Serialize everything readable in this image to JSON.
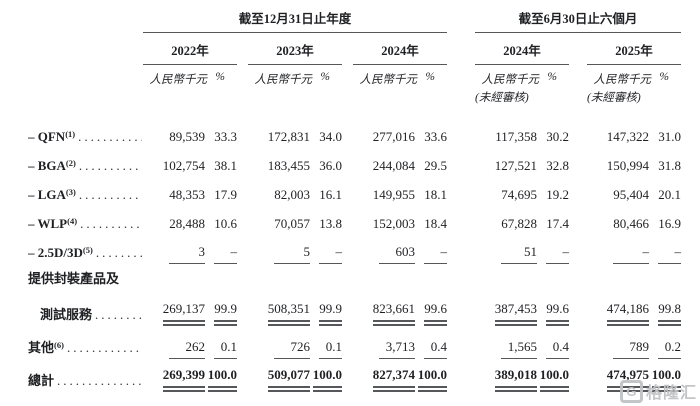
{
  "header": {
    "group_titles": [
      {
        "text": "截至12月31日止年度"
      },
      {
        "text": "截至6月30日止六個月"
      }
    ],
    "columns": [
      {
        "year": "2022年",
        "unit": "人民幣千元",
        "pct": "%",
        "note": ""
      },
      {
        "year": "2023年",
        "unit": "人民幣千元",
        "pct": "%",
        "note": ""
      },
      {
        "year": "2024年",
        "unit": "人民幣千元",
        "pct": "%",
        "note": ""
      },
      {
        "year": "2024年",
        "unit": "人民幣千元",
        "pct": "%",
        "note": "(未經審核)"
      },
      {
        "year": "2025年",
        "unit": "人民幣千元",
        "pct": "%",
        "note": "(未經審核)"
      }
    ]
  },
  "leader_dots": "......................................",
  "rows": [
    {
      "kind": "item",
      "label": "– QFN",
      "sup": "(1)",
      "leader": true,
      "rule": "none",
      "values": [
        "89,539",
        "33.3",
        "172,831",
        "34.0",
        "277,016",
        "33.6",
        "117,358",
        "30.2",
        "147,322",
        "31.0"
      ]
    },
    {
      "kind": "item",
      "label": "– BGA",
      "sup": "(2)",
      "leader": true,
      "rule": "none",
      "values": [
        "102,754",
        "38.1",
        "183,455",
        "36.0",
        "244,084",
        "29.5",
        "127,521",
        "32.8",
        "150,994",
        "31.8"
      ]
    },
    {
      "kind": "item",
      "label": "– LGA",
      "sup": "(3)",
      "leader": true,
      "rule": "none",
      "values": [
        "48,353",
        "17.9",
        "82,003",
        "16.1",
        "149,955",
        "18.1",
        "74,695",
        "19.2",
        "95,404",
        "20.1"
      ]
    },
    {
      "kind": "item",
      "label": "– WLP",
      "sup": "(4)",
      "leader": true,
      "rule": "none",
      "values": [
        "28,488",
        "10.6",
        "70,057",
        "13.8",
        "152,003",
        "18.4",
        "67,828",
        "17.4",
        "80,466",
        "16.9"
      ]
    },
    {
      "kind": "item",
      "label": "– 2.5D/3D",
      "sup": "(5)",
      "leader": true,
      "rule": "single",
      "values": [
        "3",
        "–",
        "5",
        "–",
        "603",
        "–",
        "51",
        "–",
        "–",
        "–"
      ]
    },
    {
      "kind": "section",
      "label": "提供封裝產品及",
      "sup": "",
      "leader": false,
      "rule": "none",
      "values": null
    },
    {
      "kind": "subtotal",
      "label": "測試服務",
      "sup": "",
      "leader": true,
      "rule": "double",
      "values": [
        "269,137",
        "99.9",
        "508,351",
        "99.9",
        "823,661",
        "99.6",
        "387,453",
        "99.6",
        "474,186",
        "99.8"
      ]
    },
    {
      "kind": "other",
      "label": "其他",
      "sup": "(6)",
      "leader": true,
      "rule": "single",
      "values": [
        "262",
        "0.1",
        "726",
        "0.1",
        "3,713",
        "0.4",
        "1,565",
        "0.4",
        "789",
        "0.2"
      ]
    },
    {
      "kind": "total",
      "label": "總計",
      "sup": "",
      "leader": true,
      "rule": "double",
      "values": [
        "269,399",
        "100.0",
        "509,077",
        "100.0",
        "827,374",
        "100.0",
        "389,018",
        "100.0",
        "474,975",
        "100.0"
      ]
    }
  ],
  "watermark": {
    "logo_letter": "G",
    "text": "格隆汇"
  }
}
